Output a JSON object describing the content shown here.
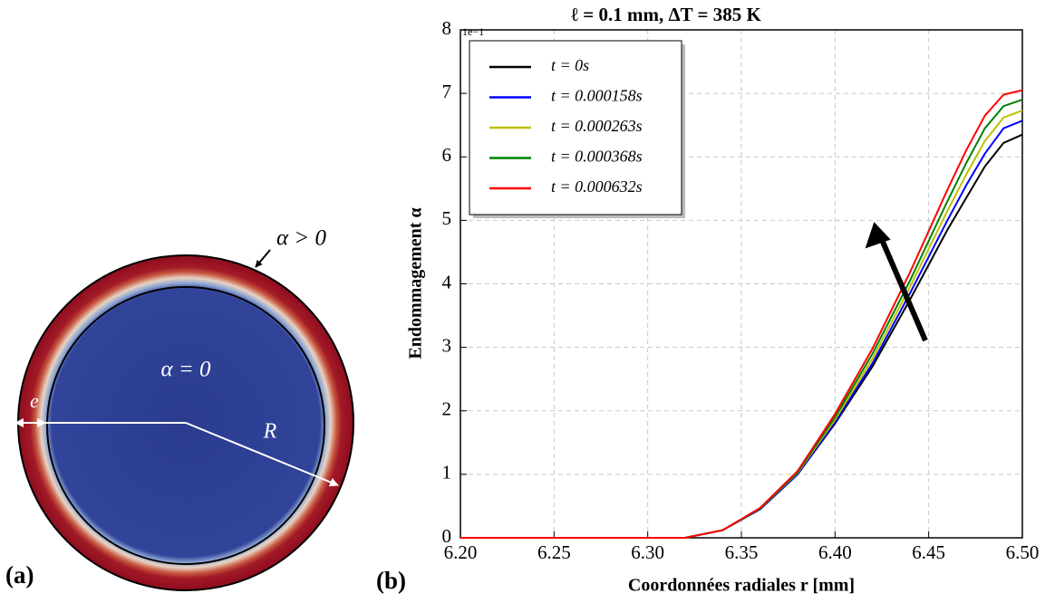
{
  "diagram": {
    "outer_label": "α > 0",
    "inner_label": "α = 0",
    "thickness_label": "e",
    "radius_label": "R",
    "panel_label": "(a)"
  },
  "chart_data": {
    "type": "line",
    "title": "ℓ = 0.1 mm, ΔT = 385 K",
    "x_label": "Coordonnées radiales r [mm]",
    "y_label": "Endommagement α",
    "y_offset_label": "1e−1",
    "panel_label": "(b)",
    "x": [
      6.2,
      6.3,
      6.32,
      6.34,
      6.36,
      6.38,
      6.4,
      6.42,
      6.44,
      6.46,
      6.47,
      6.48,
      6.49,
      6.5
    ],
    "series": [
      {
        "name": "t = 0s",
        "color": "#000000",
        "values": [
          0,
          0,
          0,
          0.12,
          0.45,
          1.0,
          1.8,
          2.7,
          3.75,
          4.85,
          5.35,
          5.85,
          6.22,
          6.35
        ]
      },
      {
        "name": "t = 0.000158s",
        "color": "#0000ff",
        "values": [
          0,
          0,
          0,
          0.12,
          0.45,
          1.0,
          1.82,
          2.75,
          3.85,
          5.0,
          5.55,
          6.05,
          6.45,
          6.57
        ]
      },
      {
        "name": "t = 0.000263s",
        "color": "#bfbf00",
        "values": [
          0,
          0,
          0,
          0.12,
          0.46,
          1.02,
          1.86,
          2.82,
          3.95,
          5.15,
          5.72,
          6.25,
          6.62,
          6.73
        ]
      },
      {
        "name": "t = 0.000368s",
        "color": "#008000",
        "values": [
          0,
          0,
          0,
          0.12,
          0.46,
          1.03,
          1.9,
          2.9,
          4.05,
          5.3,
          5.9,
          6.45,
          6.8,
          6.9
        ]
      },
      {
        "name": "t = 0.000632s",
        "color": "#ff0000",
        "values": [
          0,
          0,
          0,
          0.12,
          0.47,
          1.05,
          1.95,
          2.98,
          4.18,
          5.48,
          6.1,
          6.65,
          6.98,
          7.05
        ]
      }
    ],
    "xlim": [
      6.2,
      6.5
    ],
    "xticks": [
      {
        "value": 6.2,
        "label": "6.20"
      },
      {
        "value": 6.25,
        "label": "6.25"
      },
      {
        "value": 6.3,
        "label": "6.30"
      },
      {
        "value": 6.35,
        "label": "6.35"
      },
      {
        "value": 6.4,
        "label": "6.40"
      },
      {
        "value": 6.45,
        "label": "6.45"
      },
      {
        "value": 6.5,
        "label": "6.50"
      }
    ],
    "ylim": [
      0,
      8
    ],
    "yticks": [
      0,
      1,
      2,
      3,
      4,
      5,
      6,
      7,
      8
    ],
    "grid": true,
    "legend": "upper left"
  }
}
